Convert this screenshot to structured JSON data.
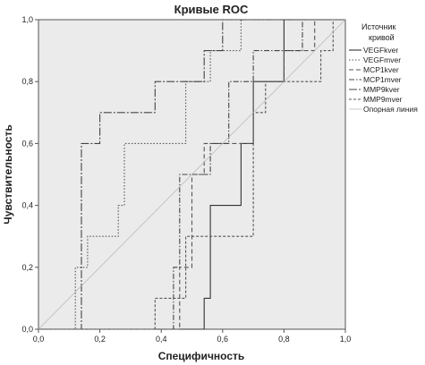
{
  "chart_data": {
    "type": "line",
    "title": "Кривые ROC",
    "xlabel": "Специфичность",
    "ylabel": "Чувствительность",
    "xlim": [
      0,
      1
    ],
    "ylim": [
      0,
      1
    ],
    "x_ticks": [
      "0,0",
      "0,2",
      "0,4",
      "0,6",
      "0,8",
      "1,0"
    ],
    "y_ticks": [
      "0,0",
      "0,2",
      "0,4",
      "0,6",
      "0,8",
      "1,0"
    ],
    "grid": false,
    "legend_title": "Источник кривой",
    "legend_position": "right",
    "plot_background": "#ebebeb",
    "series": [
      {
        "name": "VEGFkver",
        "color": "#333333",
        "dash": "solid",
        "points": [
          [
            0.0,
            0.0
          ],
          [
            0.54,
            0.0
          ],
          [
            0.54,
            0.1
          ],
          [
            0.56,
            0.1
          ],
          [
            0.56,
            0.4
          ],
          [
            0.66,
            0.4
          ],
          [
            0.66,
            0.6
          ],
          [
            0.7,
            0.6
          ],
          [
            0.7,
            0.8
          ],
          [
            0.8,
            0.8
          ],
          [
            0.8,
            1.0
          ],
          [
            1.0,
            1.0
          ]
        ]
      },
      {
        "name": "VEGFmver",
        "color": "#555555",
        "dash": "dot",
        "points": [
          [
            0.0,
            0.0
          ],
          [
            0.12,
            0.0
          ],
          [
            0.12,
            0.2
          ],
          [
            0.16,
            0.2
          ],
          [
            0.16,
            0.3
          ],
          [
            0.26,
            0.3
          ],
          [
            0.26,
            0.4
          ],
          [
            0.28,
            0.4
          ],
          [
            0.28,
            0.6
          ],
          [
            0.48,
            0.6
          ],
          [
            0.48,
            0.8
          ],
          [
            0.56,
            0.8
          ],
          [
            0.56,
            0.9
          ],
          [
            0.66,
            0.9
          ],
          [
            0.66,
            1.0
          ],
          [
            1.0,
            1.0
          ]
        ]
      },
      {
        "name": "MCP1kver",
        "color": "#555555",
        "dash": "dash",
        "points": [
          [
            0.0,
            0.0
          ],
          [
            0.46,
            0.0
          ],
          [
            0.46,
            0.2
          ],
          [
            0.5,
            0.2
          ],
          [
            0.5,
            0.5
          ],
          [
            0.54,
            0.5
          ],
          [
            0.54,
            0.6
          ],
          [
            0.7,
            0.6
          ],
          [
            0.7,
            0.8
          ],
          [
            0.8,
            0.8
          ],
          [
            0.8,
            0.9
          ],
          [
            0.9,
            0.9
          ],
          [
            0.9,
            1.0
          ],
          [
            1.0,
            1.0
          ]
        ]
      },
      {
        "name": "MCP1mver",
        "color": "#444444",
        "dash": "dashdot",
        "points": [
          [
            0.0,
            0.0
          ],
          [
            0.44,
            0.0
          ],
          [
            0.44,
            0.2
          ],
          [
            0.46,
            0.2
          ],
          [
            0.46,
            0.5
          ],
          [
            0.56,
            0.5
          ],
          [
            0.56,
            0.6
          ],
          [
            0.62,
            0.6
          ],
          [
            0.62,
            0.8
          ],
          [
            0.7,
            0.8
          ],
          [
            0.7,
            0.9
          ],
          [
            0.86,
            0.9
          ],
          [
            0.86,
            1.0
          ],
          [
            1.0,
            1.0
          ]
        ]
      },
      {
        "name": "MMP9kver",
        "color": "#444444",
        "dash": "longdashdot",
        "points": [
          [
            0.0,
            0.0
          ],
          [
            0.14,
            0.0
          ],
          [
            0.14,
            0.6
          ],
          [
            0.2,
            0.6
          ],
          [
            0.2,
            0.7
          ],
          [
            0.38,
            0.7
          ],
          [
            0.38,
            0.8
          ],
          [
            0.54,
            0.8
          ],
          [
            0.54,
            0.9
          ],
          [
            0.6,
            0.9
          ],
          [
            0.6,
            1.0
          ],
          [
            1.0,
            1.0
          ]
        ]
      },
      {
        "name": "MMP9mver",
        "color": "#555555",
        "dash": "shortdash",
        "points": [
          [
            0.0,
            0.0
          ],
          [
            0.38,
            0.0
          ],
          [
            0.38,
            0.1
          ],
          [
            0.48,
            0.1
          ],
          [
            0.48,
            0.3
          ],
          [
            0.7,
            0.3
          ],
          [
            0.7,
            0.7
          ],
          [
            0.74,
            0.7
          ],
          [
            0.74,
            0.8
          ],
          [
            0.92,
            0.8
          ],
          [
            0.92,
            0.9
          ],
          [
            0.96,
            0.9
          ],
          [
            0.96,
            1.0
          ],
          [
            1.0,
            1.0
          ]
        ]
      },
      {
        "name": "Опорная линия",
        "color": "#b5b5b5",
        "dash": "thin",
        "points": [
          [
            0.0,
            0.0
          ],
          [
            1.0,
            1.0
          ]
        ]
      }
    ]
  }
}
